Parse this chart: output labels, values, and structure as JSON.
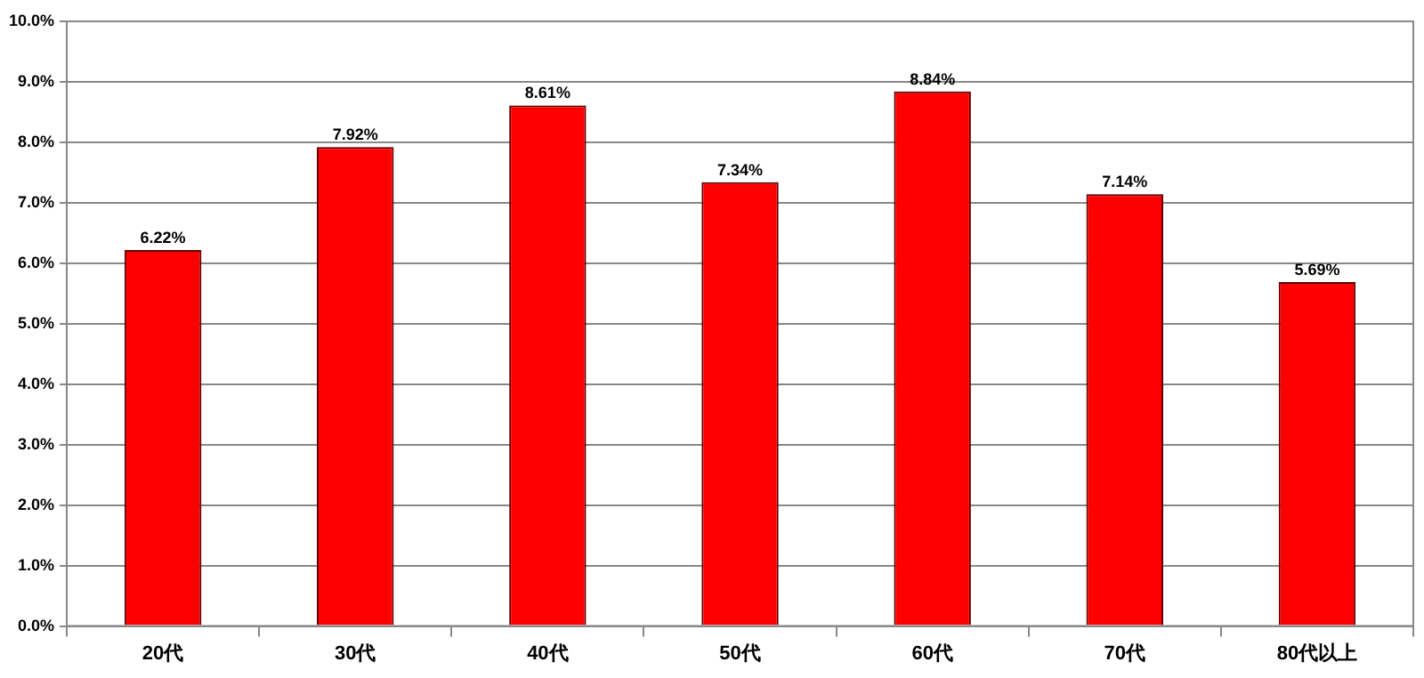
{
  "chart_data": {
    "type": "bar",
    "categories": [
      "20代",
      "30代",
      "40代",
      "50代",
      "60代",
      "70代",
      "80代以上"
    ],
    "values": [
      6.22,
      7.92,
      8.61,
      7.34,
      8.84,
      7.14,
      5.69
    ],
    "value_labels": [
      "6.22%",
      "7.92%",
      "8.61%",
      "7.34%",
      "8.84%",
      "7.14%",
      "5.69%"
    ],
    "color": "#ff0000",
    "ylim": [
      0,
      10
    ],
    "yticks": [
      {
        "value": 0,
        "label": "0.0%"
      },
      {
        "value": 1,
        "label": "1.0%"
      },
      {
        "value": 2,
        "label": "2.0%"
      },
      {
        "value": 3,
        "label": "3.0%"
      },
      {
        "value": 4,
        "label": "4.0%"
      },
      {
        "value": 5,
        "label": "5.0%"
      },
      {
        "value": 6,
        "label": "6.0%"
      },
      {
        "value": 7,
        "label": "7.0%"
      },
      {
        "value": 8,
        "label": "8.0%"
      },
      {
        "value": 9,
        "label": "9.0%"
      },
      {
        "value": 10,
        "label": "10.0%"
      }
    ],
    "grid": "y"
  }
}
